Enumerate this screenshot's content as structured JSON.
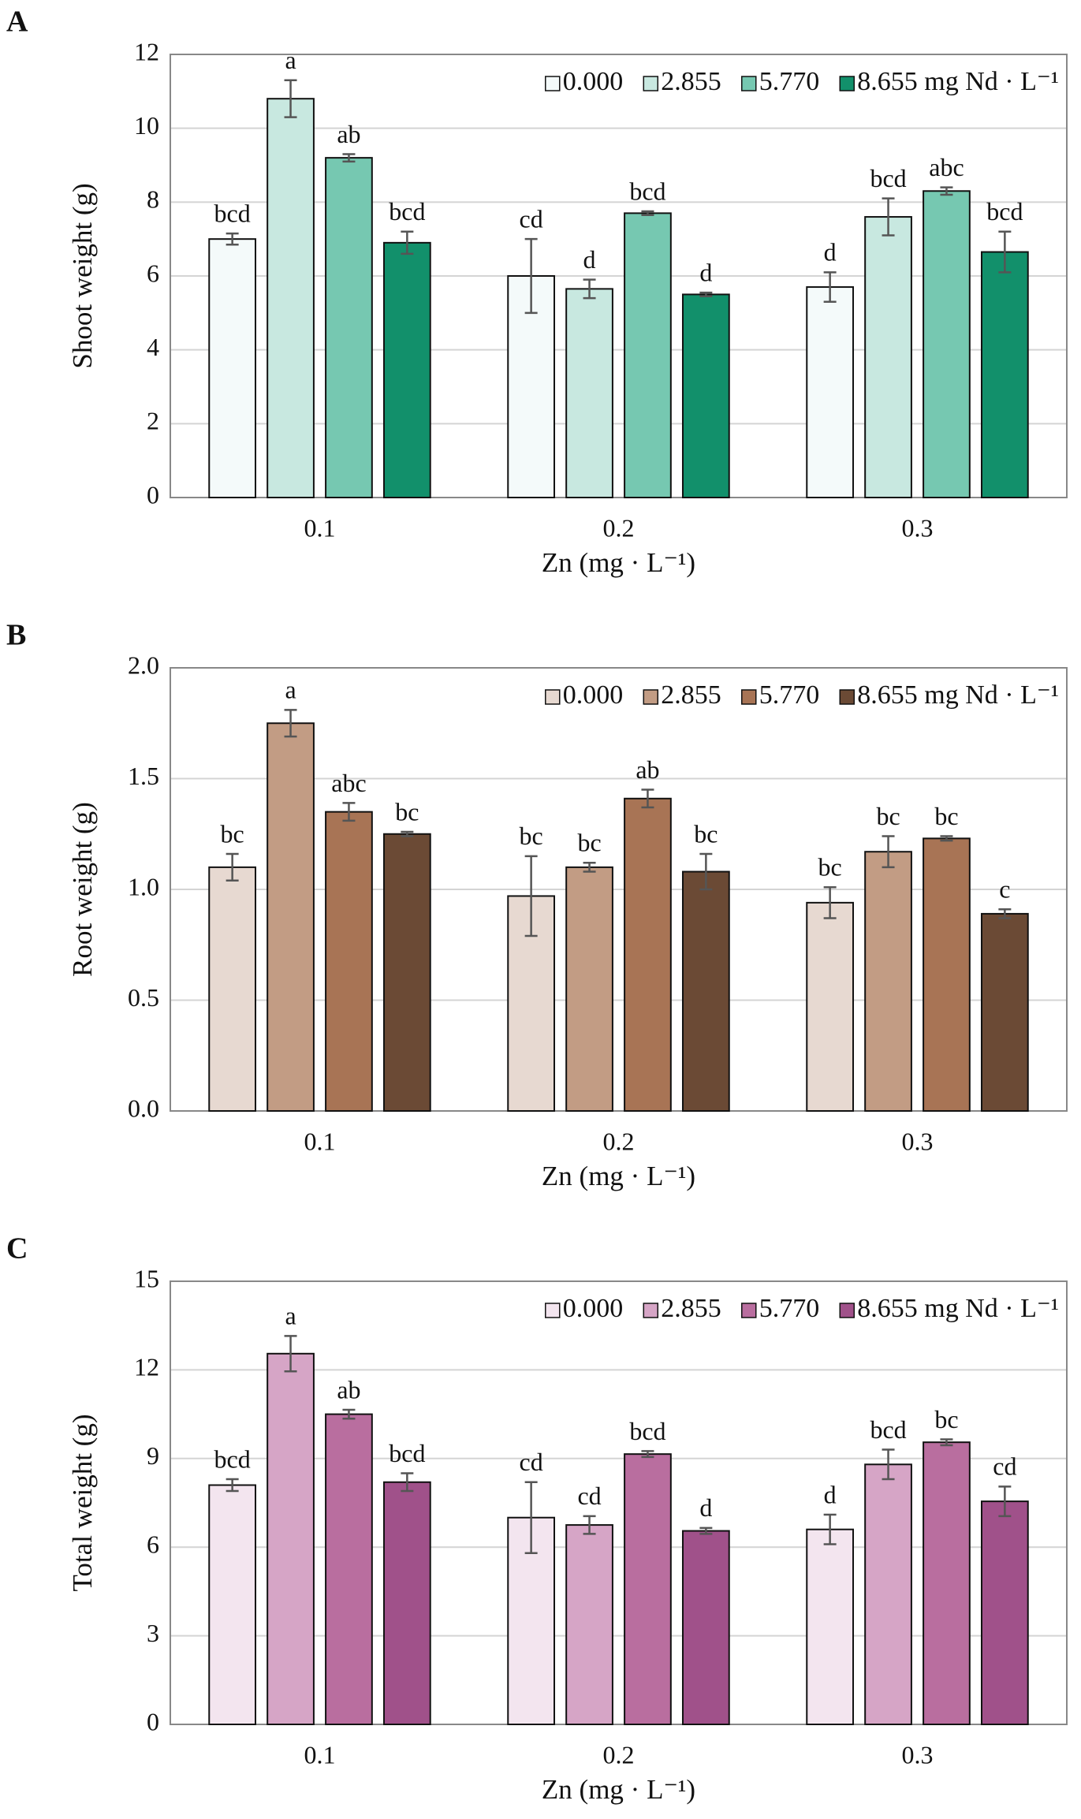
{
  "chart_data": [
    {
      "type": "bar",
      "panel": "A",
      "ylabel": "Shoot weight (g)",
      "xlabel": "Zn (mg · L⁻¹)",
      "categories": [
        "0.1",
        "0.2",
        "0.3"
      ],
      "ylim": [
        0,
        12
      ],
      "yticks": [
        0,
        2,
        4,
        6,
        8,
        10,
        12
      ],
      "grid": true,
      "series": [
        {
          "name": "0.000",
          "color": "#f4fafa",
          "values": [
            7.0,
            6.0,
            5.7
          ],
          "errors": [
            0.15,
            1.0,
            0.4
          ],
          "letters": [
            "bcd",
            "cd",
            "d"
          ]
        },
        {
          "name": "2.855",
          "color": "#c8e8e0",
          "values": [
            10.8,
            5.65,
            7.6
          ],
          "errors": [
            0.5,
            0.25,
            0.5
          ],
          "letters": [
            "a",
            "d",
            "bcd"
          ]
        },
        {
          "name": "5.770",
          "color": "#76c8b1",
          "values": [
            9.2,
            7.7,
            8.3
          ],
          "errors": [
            0.1,
            0.05,
            0.1
          ],
          "letters": [
            "ab",
            "bcd",
            "abc"
          ]
        },
        {
          "name": "8.655 mg Nd · L⁻¹",
          "color": "#12906b",
          "values": [
            6.9,
            5.5,
            6.65
          ],
          "errors": [
            0.3,
            0.05,
            0.55
          ],
          "letters": [
            "bcd",
            "d",
            "bcd"
          ]
        }
      ]
    },
    {
      "type": "bar",
      "panel": "B",
      "ylabel": "Root weight (g)",
      "xlabel": "Zn (mg · L⁻¹)",
      "categories": [
        "0.1",
        "0.2",
        "0.3"
      ],
      "ylim": [
        0,
        2
      ],
      "yticks": [
        {
          "value": 0,
          "label": "0.0"
        },
        0.5,
        {
          "value": 1,
          "label": "1.0"
        },
        1.5,
        {
          "value": 2,
          "label": "2.0"
        }
      ],
      "grid": true,
      "series": [
        {
          "name": "0.000",
          "color": "#e7d9d1",
          "values": [
            1.1,
            0.97,
            0.94
          ],
          "errors": [
            0.06,
            0.18,
            0.07
          ],
          "letters": [
            "bc",
            "bc",
            "bc"
          ]
        },
        {
          "name": "2.855",
          "color": "#c29c84",
          "values": [
            1.75,
            1.1,
            1.17
          ],
          "errors": [
            0.06,
            0.02,
            0.07
          ],
          "letters": [
            "a",
            "bc",
            "bc"
          ]
        },
        {
          "name": "5.770",
          "color": "#a87455",
          "values": [
            1.35,
            1.41,
            1.23
          ],
          "errors": [
            0.04,
            0.04,
            0.01
          ],
          "letters": [
            "abc",
            "ab",
            "bc"
          ]
        },
        {
          "name": "8.655 mg Nd · L⁻¹",
          "color": "#6b4a35",
          "values": [
            1.25,
            1.08,
            0.89
          ],
          "errors": [
            0.01,
            0.08,
            0.02
          ],
          "letters": [
            "bc",
            "bc",
            "c"
          ]
        }
      ]
    },
    {
      "type": "bar",
      "panel": "C",
      "ylabel": "Total weight (g)",
      "xlabel": "Zn (mg · L⁻¹)",
      "categories": [
        "0.1",
        "0.2",
        "0.3"
      ],
      "ylim": [
        0,
        15
      ],
      "yticks": [
        0,
        3,
        6,
        9,
        12,
        15
      ],
      "grid": true,
      "series": [
        {
          "name": "0.000",
          "color": "#f3e5ef",
          "values": [
            8.1,
            7.0,
            6.6
          ],
          "errors": [
            0.2,
            1.2,
            0.5
          ],
          "letters": [
            "bcd",
            "cd",
            "d"
          ]
        },
        {
          "name": "2.855",
          "color": "#d6a5c6",
          "values": [
            12.55,
            6.75,
            8.8
          ],
          "errors": [
            0.6,
            0.3,
            0.5
          ],
          "letters": [
            "a",
            "cd",
            "bcd"
          ]
        },
        {
          "name": "5.770",
          "color": "#b96e9f",
          "values": [
            10.5,
            9.15,
            9.55
          ],
          "errors": [
            0.15,
            0.1,
            0.1
          ],
          "letters": [
            "ab",
            "bcd",
            "bc"
          ]
        },
        {
          "name": "8.655 mg Nd · L⁻¹",
          "color": "#a0518a",
          "values": [
            8.2,
            6.55,
            7.55
          ],
          "errors": [
            0.3,
            0.1,
            0.5
          ],
          "letters": [
            "bcd",
            "d",
            "cd"
          ]
        }
      ]
    }
  ]
}
